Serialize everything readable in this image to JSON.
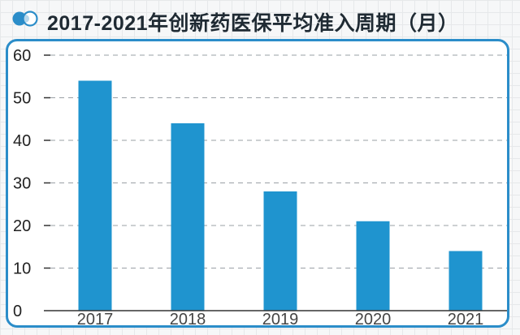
{
  "title": "2017-2021年创新药医保平均准入周期（月）",
  "colors": {
    "bar": "#1f94cf",
    "accent": "#2b8dc9",
    "text": "#1f2a33"
  },
  "logo_icon": "two-circles-icon",
  "chart_data": {
    "type": "bar",
    "title": "",
    "xlabel": "",
    "ylabel": "",
    "categories": [
      "2017",
      "2018",
      "2019",
      "2020",
      "2021"
    ],
    "values": [
      54,
      44,
      28,
      21,
      14
    ],
    "ylim": [
      0,
      60
    ],
    "yticks": [
      "0",
      "10",
      "20",
      "30",
      "40",
      "50",
      "60"
    ],
    "grid": true
  }
}
